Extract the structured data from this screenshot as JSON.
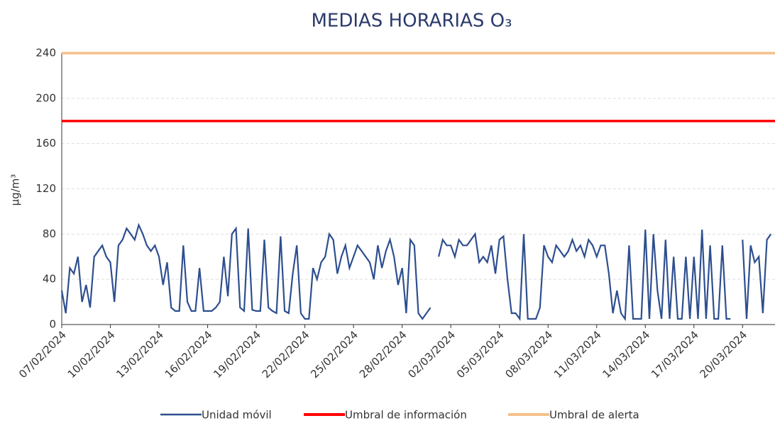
{
  "chart_data": {
    "type": "line",
    "title": "MEDIAS HORARIAS O₃",
    "y_label": "µg/m³",
    "categories": [
      "07/02/2024",
      null,
      null,
      null,
      null,
      null,
      null,
      null,
      null,
      null,
      null,
      null,
      "10/02/2024",
      null,
      null,
      null,
      null,
      null,
      null,
      null,
      null,
      null,
      null,
      null,
      "13/02/2024",
      null,
      null,
      null,
      null,
      null,
      null,
      null,
      null,
      null,
      null,
      null,
      "16/02/2024",
      null,
      null,
      null,
      null,
      null,
      null,
      null,
      null,
      null,
      null,
      null,
      "19/02/2024",
      null,
      null,
      null,
      null,
      null,
      null,
      null,
      null,
      null,
      null,
      null,
      "22/02/2024",
      null,
      null,
      null,
      null,
      null,
      null,
      null,
      null,
      null,
      null,
      null,
      "25/02/2024",
      null,
      null,
      null,
      null,
      null,
      null,
      null,
      null,
      null,
      null,
      null,
      "28/02/2024",
      null,
      null,
      null,
      null,
      null,
      null,
      null,
      null,
      null,
      null,
      null,
      "02/03/2024",
      null,
      null,
      null,
      null,
      null,
      null,
      null,
      null,
      null,
      null,
      null,
      "05/03/2024",
      null,
      null,
      null,
      null,
      null,
      null,
      null,
      null,
      null,
      null,
      null,
      "08/03/2024",
      null,
      null,
      null,
      null,
      null,
      null,
      null,
      null,
      null,
      null,
      null,
      "11/03/2024",
      null,
      null,
      null,
      null,
      null,
      null,
      null,
      null,
      null,
      null,
      null,
      "14/03/2024",
      null,
      null,
      null,
      null,
      null,
      null,
      null,
      null,
      null,
      null,
      null,
      "17/03/2024",
      null,
      null,
      null,
      null,
      null,
      null,
      null,
      null,
      null,
      null,
      null,
      "20/03/2024",
      null,
      null,
      null,
      null,
      null,
      null,
      null
    ],
    "series": [
      {
        "name": "Unidad móvil",
        "color": "#2e4f8f",
        "values": [
          30,
          10,
          50,
          45,
          60,
          20,
          35,
          15,
          60,
          65,
          70,
          60,
          55,
          20,
          70,
          75,
          85,
          80,
          75,
          88,
          80,
          70,
          65,
          70,
          60,
          35,
          55,
          15,
          12,
          12,
          70,
          20,
          12,
          12,
          50,
          12,
          12,
          12,
          15,
          20,
          60,
          25,
          80,
          85,
          15,
          12,
          85,
          13,
          12,
          12,
          75,
          15,
          12,
          10,
          78,
          12,
          10,
          45,
          70,
          10,
          5,
          5,
          50,
          40,
          55,
          60,
          80,
          75,
          45,
          60,
          70,
          50,
          60,
          70,
          65,
          60,
          55,
          40,
          70,
          50,
          65,
          75,
          60,
          35,
          50,
          10,
          75,
          70,
          10,
          5,
          10,
          15,
          null,
          60,
          75,
          70,
          70,
          60,
          75,
          70,
          70,
          75,
          80,
          55,
          60,
          55,
          70,
          45,
          75,
          78,
          40,
          10,
          10,
          5,
          80,
          5,
          5,
          5,
          15,
          70,
          60,
          55,
          70,
          65,
          60,
          65,
          75,
          65,
          70,
          60,
          75,
          70,
          60,
          70,
          70,
          45,
          10,
          30,
          10,
          5,
          70,
          5,
          5,
          5,
          84,
          5,
          80,
          30,
          5,
          75,
          5,
          60,
          5,
          5,
          60,
          5,
          60,
          5,
          84,
          5,
          70,
          5,
          5,
          70,
          5,
          5,
          null,
          null,
          75,
          5,
          70,
          55,
          60,
          10,
          75,
          80
        ]
      }
    ],
    "thresholds": [
      {
        "name": "Umbral de información",
        "color": "#ff0000",
        "value": 180
      },
      {
        "name": "Umbral de alerta",
        "color": "#f4c18a",
        "value": 240
      }
    ],
    "ylim": [
      0,
      240
    ],
    "yticks": [
      0,
      40,
      80,
      120,
      160,
      200,
      240
    ],
    "grid": true
  }
}
